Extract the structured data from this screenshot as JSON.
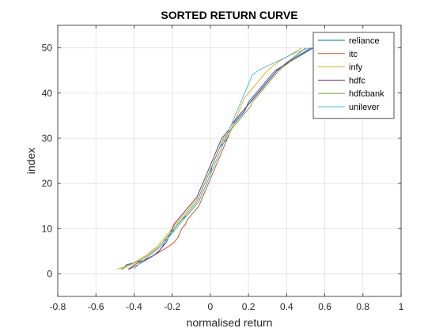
{
  "chart_data": {
    "type": "line",
    "title": "SORTED RETURN CURVE",
    "xlabel": "normalised return",
    "ylabel": "index",
    "xlim": [
      -0.8,
      1.0
    ],
    "ylim": [
      -5,
      55
    ],
    "xticks": [
      -0.8,
      -0.6,
      -0.4,
      -0.2,
      0,
      0.2,
      0.4,
      0.6,
      0.8,
      1
    ],
    "xtick_labels": [
      "-0.8",
      "-0.6",
      "-0.4",
      "-0.2",
      "0",
      "0.2",
      "0.4",
      "0.6",
      "0.8",
      "1"
    ],
    "yticks": [
      0,
      10,
      20,
      30,
      40,
      50
    ],
    "ytick_labels": [
      "0",
      "10",
      "20",
      "30",
      "40",
      "50"
    ],
    "grid": true,
    "legend_position": "top-right",
    "series": [
      {
        "name": "reliance",
        "color": "#0072BD",
        "x": [
          -0.46,
          -0.44,
          -0.35,
          -0.3,
          -0.27,
          -0.25,
          -0.24,
          -0.23,
          -0.2,
          -0.19,
          -0.17,
          -0.15,
          -0.12,
          -0.1,
          -0.08,
          -0.06,
          -0.05,
          -0.04,
          -0.03,
          -0.02,
          -0.01,
          0.0,
          0.005,
          0.01,
          0.02,
          0.03,
          0.04,
          0.05,
          0.07,
          0.09,
          0.1,
          0.11,
          0.12,
          0.14,
          0.16,
          0.18,
          0.19,
          0.2,
          0.22,
          0.24,
          0.26,
          0.28,
          0.3,
          0.32,
          0.34,
          0.38,
          0.42,
          0.46,
          0.5,
          0.54
        ],
        "y": [
          1,
          2,
          3,
          4,
          5,
          6,
          7,
          8,
          9,
          10,
          11,
          12,
          13,
          14,
          15,
          16,
          17,
          18,
          19,
          20,
          21,
          22,
          23,
          24,
          25,
          26,
          27,
          28,
          29,
          30,
          31,
          32,
          33,
          34,
          35,
          36,
          37,
          38,
          39,
          40,
          41,
          42,
          43,
          44,
          45,
          46,
          47,
          48,
          49,
          50
        ]
      },
      {
        "name": "itc",
        "color": "#D95319",
        "x": [
          -0.43,
          -0.4,
          -0.35,
          -0.3,
          -0.26,
          -0.22,
          -0.19,
          -0.17,
          -0.16,
          -0.15,
          -0.13,
          -0.12,
          -0.1,
          -0.08,
          -0.06,
          -0.05,
          -0.04,
          -0.03,
          -0.02,
          -0.01,
          0.0,
          0.01,
          0.02,
          0.03,
          0.04,
          0.05,
          0.06,
          0.07,
          0.08,
          0.09,
          0.1,
          0.11,
          0.12,
          0.13,
          0.15,
          0.17,
          0.19,
          0.21,
          0.23,
          0.25,
          0.27,
          0.29,
          0.31,
          0.33,
          0.35,
          0.38,
          0.41,
          0.44,
          0.47,
          0.5
        ],
        "y": [
          1,
          2,
          3,
          4,
          5,
          6,
          7,
          8,
          9,
          10,
          11,
          12,
          13,
          14,
          15,
          16,
          17,
          18,
          19,
          20,
          21,
          22,
          23,
          24,
          25,
          26,
          27,
          28,
          29,
          30,
          31,
          32,
          33,
          34,
          35,
          36,
          37,
          38,
          39,
          40,
          41,
          42,
          43,
          44,
          45,
          46,
          47,
          48,
          49,
          50
        ]
      },
      {
        "name": "infy",
        "color": "#EDB120",
        "x": [
          -0.49,
          -0.42,
          -0.38,
          -0.34,
          -0.31,
          -0.28,
          -0.26,
          -0.24,
          -0.22,
          -0.2,
          -0.18,
          -0.16,
          -0.14,
          -0.12,
          -0.1,
          -0.08,
          -0.06,
          -0.05,
          -0.04,
          -0.03,
          -0.02,
          -0.01,
          0.0,
          0.01,
          0.02,
          0.03,
          0.04,
          0.05,
          0.06,
          0.08,
          0.1,
          0.11,
          0.12,
          0.13,
          0.14,
          0.15,
          0.16,
          0.17,
          0.18,
          0.2,
          0.22,
          0.24,
          0.26,
          0.28,
          0.3,
          0.33,
          0.36,
          0.4,
          0.44,
          0.48
        ],
        "y": [
          1,
          2,
          3,
          4,
          5,
          6,
          7,
          8,
          9,
          10,
          11,
          12,
          13,
          14,
          15,
          16,
          17,
          18,
          19,
          20,
          21,
          22,
          23,
          24,
          25,
          26,
          27,
          28,
          29,
          30,
          31,
          32,
          33,
          34,
          35,
          36,
          37,
          38,
          39,
          40,
          41,
          42,
          43,
          44,
          45,
          46,
          47,
          48,
          49,
          50
        ]
      },
      {
        "name": "hdfc",
        "color": "#7E2F8E",
        "x": [
          -0.43,
          -0.38,
          -0.34,
          -0.3,
          -0.27,
          -0.25,
          -0.23,
          -0.22,
          -0.21,
          -0.2,
          -0.19,
          -0.17,
          -0.15,
          -0.13,
          -0.11,
          -0.09,
          -0.07,
          -0.06,
          -0.05,
          -0.04,
          -0.03,
          -0.02,
          -0.01,
          0.0,
          0.01,
          0.02,
          0.03,
          0.04,
          0.05,
          0.06,
          0.08,
          0.1,
          0.11,
          0.13,
          0.15,
          0.17,
          0.19,
          0.21,
          0.23,
          0.25,
          0.27,
          0.29,
          0.31,
          0.33,
          0.35,
          0.38,
          0.41,
          0.45,
          0.49,
          0.53
        ],
        "y": [
          1,
          2,
          3,
          4,
          5,
          6,
          7,
          8,
          9,
          10,
          11,
          12,
          13,
          14,
          15,
          16,
          17,
          18,
          19,
          20,
          21,
          22,
          23,
          24,
          25,
          26,
          27,
          28,
          29,
          30,
          31,
          32,
          33,
          34,
          35,
          36,
          37,
          38,
          39,
          40,
          41,
          42,
          43,
          44,
          45,
          46,
          47,
          48,
          49,
          50
        ]
      },
      {
        "name": "hdfcbank",
        "color": "#77AC30",
        "x": [
          -0.47,
          -0.42,
          -0.37,
          -0.33,
          -0.3,
          -0.27,
          -0.25,
          -0.23,
          -0.21,
          -0.19,
          -0.17,
          -0.15,
          -0.13,
          -0.11,
          -0.09,
          -0.07,
          -0.06,
          -0.05,
          -0.04,
          -0.03,
          -0.02,
          -0.01,
          0.0,
          0.01,
          0.02,
          0.03,
          0.04,
          0.05,
          0.06,
          0.07,
          0.09,
          0.11,
          0.13,
          0.15,
          0.17,
          0.19,
          0.21,
          0.22,
          0.24,
          0.26,
          0.28,
          0.3,
          0.32,
          0.34,
          0.36,
          0.39,
          0.42,
          0.44,
          0.47,
          0.5
        ],
        "y": [
          1,
          2,
          3,
          4,
          5,
          6,
          7,
          8,
          9,
          10,
          11,
          12,
          13,
          14,
          15,
          16,
          17,
          18,
          19,
          20,
          21,
          22,
          23,
          24,
          25,
          26,
          27,
          28,
          29,
          30,
          31,
          32,
          33,
          34,
          35,
          36,
          37,
          38,
          39,
          40,
          41,
          42,
          43,
          44,
          45,
          46,
          47,
          48,
          49,
          50
        ]
      },
      {
        "name": "unilever",
        "color": "#4DBEEE",
        "x": [
          -0.4,
          -0.38,
          -0.35,
          -0.32,
          -0.29,
          -0.26,
          -0.24,
          -0.22,
          -0.2,
          -0.18,
          -0.16,
          -0.14,
          -0.12,
          -0.1,
          -0.08,
          -0.06,
          -0.05,
          -0.04,
          -0.03,
          -0.02,
          -0.01,
          0.0,
          0.01,
          0.02,
          0.03,
          0.04,
          0.05,
          0.06,
          0.07,
          0.08,
          0.09,
          0.1,
          0.11,
          0.12,
          0.13,
          0.14,
          0.15,
          0.16,
          0.17,
          0.18,
          0.19,
          0.2,
          0.21,
          0.22,
          0.25,
          0.3,
          0.35,
          0.4,
          0.45,
          0.52
        ],
        "y": [
          1,
          2,
          3,
          4,
          5,
          6,
          7,
          8,
          9,
          10,
          11,
          12,
          13,
          14,
          15,
          16,
          17,
          18,
          19,
          20,
          21,
          22,
          23,
          24,
          25,
          26,
          27,
          28,
          29,
          30,
          31,
          32,
          33,
          34,
          35,
          36,
          37,
          38,
          39,
          40,
          41,
          42,
          43,
          44,
          45,
          46,
          47,
          48,
          49,
          50
        ]
      }
    ]
  }
}
